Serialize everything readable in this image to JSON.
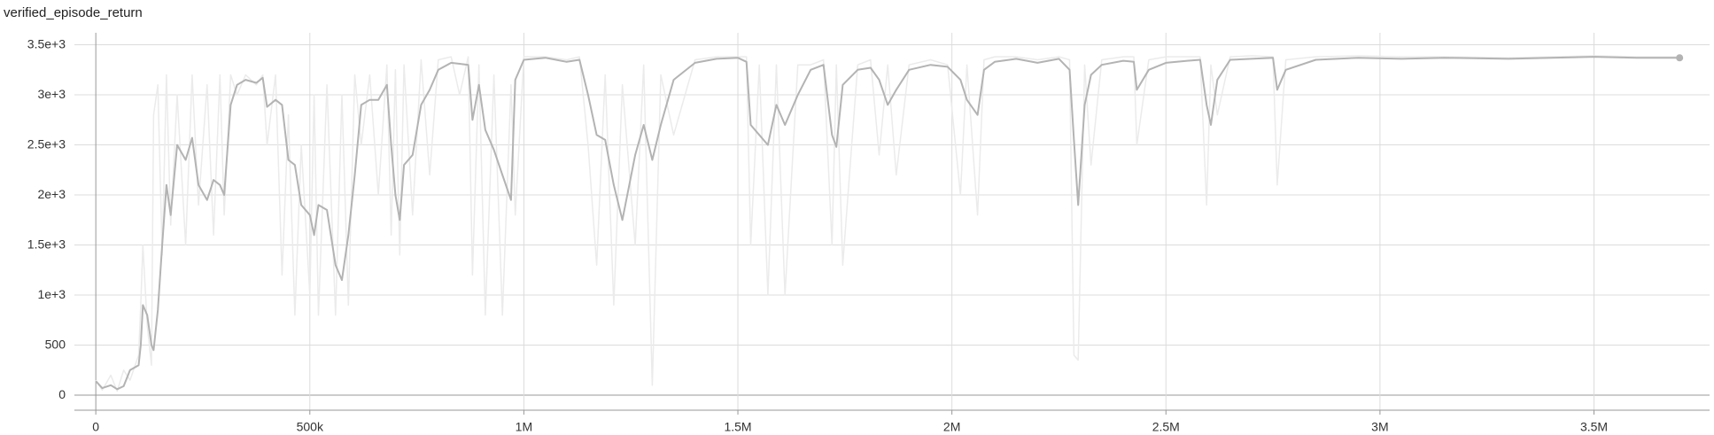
{
  "chart_data": {
    "type": "line",
    "title": "verified_episode_return",
    "x": [
      0,
      15000,
      35000,
      50000,
      65000,
      80000,
      100000,
      105000,
      110000,
      120000,
      130000,
      135000,
      145000,
      155000,
      165000,
      175000,
      190000,
      210000,
      225000,
      240000,
      260000,
      275000,
      290000,
      300000,
      315000,
      330000,
      350000,
      375000,
      390000,
      400000,
      420000,
      435000,
      450000,
      465000,
      480000,
      500000,
      510000,
      520000,
      540000,
      560000,
      575000,
      590000,
      605000,
      620000,
      640000,
      660000,
      680000,
      690000,
      700000,
      710000,
      720000,
      740000,
      760000,
      780000,
      800000,
      830000,
      850000,
      870000,
      880000,
      895000,
      910000,
      930000,
      950000,
      970000,
      980000,
      1000000,
      1050000,
      1100000,
      1130000,
      1150000,
      1170000,
      1190000,
      1210000,
      1230000,
      1260000,
      1280000,
      1300000,
      1320000,
      1350000,
      1400000,
      1450000,
      1500000,
      1520000,
      1530000,
      1550000,
      1570000,
      1590000,
      1610000,
      1640000,
      1670000,
      1700000,
      1720000,
      1730000,
      1745000,
      1780000,
      1810000,
      1830000,
      1850000,
      1870000,
      1900000,
      1950000,
      1990000,
      2020000,
      2035000,
      2060000,
      2075000,
      2100000,
      2150000,
      2200000,
      2250000,
      2275000,
      2285000,
      2295000,
      2310000,
      2325000,
      2350000,
      2400000,
      2425000,
      2432000,
      2460000,
      2500000,
      2550000,
      2580000,
      2595000,
      2605000,
      2620000,
      2650000,
      2700000,
      2750000,
      2760000,
      2780000,
      2850000,
      2950000,
      3050000,
      3150000,
      3300000,
      3400000,
      3500000,
      3600000,
      3700000
    ],
    "series": [
      {
        "color": "#ebebeb",
        "values": [
          150,
          50,
          200,
          40,
          250,
          150,
          400,
          900,
          1500,
          700,
          300,
          2800,
          3100,
          1400,
          3200,
          1700,
          3000,
          1500,
          3200,
          1900,
          3100,
          1600,
          3200,
          1800,
          3200,
          3000,
          3200,
          3100,
          3200,
          2500,
          3200,
          1200,
          2800,
          800,
          2500,
          1000,
          3000,
          800,
          3100,
          800,
          3000,
          900,
          3200,
          2500,
          3200,
          2000,
          3300,
          1600,
          3250,
          1400,
          3300,
          1800,
          3350,
          2200,
          3350,
          3380,
          3000,
          3380,
          1200,
          3300,
          800,
          3200,
          800,
          3100,
          1800,
          3380,
          3380,
          3350,
          3380,
          2500,
          1300,
          3200,
          900,
          3100,
          1500,
          3300,
          100,
          3200,
          2600,
          3350,
          3380,
          3380,
          3380,
          1500,
          3300,
          1000,
          3300,
          1000,
          3300,
          3300,
          3350,
          1500,
          3300,
          1300,
          3300,
          3350,
          2400,
          3300,
          2200,
          3300,
          3350,
          3300,
          2000,
          3300,
          1800,
          3350,
          3380,
          3380,
          3350,
          3380,
          3350,
          400,
          350,
          3300,
          2300,
          3350,
          3380,
          3380,
          2500,
          3350,
          3380,
          3380,
          3380,
          1900,
          3300,
          2800,
          3380,
          3390,
          3380,
          2100,
          3350,
          3380,
          3390,
          3380,
          3380,
          3370,
          3380,
          3390,
          3380,
          3380
        ]
      },
      {
        "color": "#b3b3b3",
        "values": [
          140,
          70,
          100,
          60,
          90,
          250,
          300,
          500,
          900,
          800,
          500,
          450,
          850,
          1500,
          2100,
          1800,
          2500,
          2350,
          2570,
          2100,
          1950,
          2150,
          2100,
          2000,
          2900,
          3100,
          3150,
          3120,
          3170,
          2880,
          2950,
          2900,
          2350,
          2300,
          1900,
          1800,
          1600,
          1900,
          1850,
          1300,
          1150,
          1600,
          2200,
          2900,
          2950,
          2950,
          3100,
          2500,
          2000,
          1750,
          2300,
          2400,
          2900,
          3050,
          3250,
          3320,
          3310,
          3300,
          2750,
          3100,
          2650,
          2450,
          2200,
          1950,
          3150,
          3350,
          3370,
          3330,
          3350,
          3000,
          2600,
          2550,
          2100,
          1750,
          2400,
          2700,
          2350,
          2700,
          3150,
          3320,
          3360,
          3370,
          3330,
          2700,
          2600,
          2500,
          2900,
          2700,
          3000,
          3250,
          3300,
          2600,
          2480,
          3100,
          3250,
          3270,
          3150,
          2900,
          3050,
          3250,
          3300,
          3280,
          3150,
          2950,
          2800,
          3250,
          3330,
          3360,
          3320,
          3360,
          3250,
          2550,
          1900,
          2900,
          3200,
          3300,
          3340,
          3330,
          3050,
          3250,
          3320,
          3340,
          3350,
          2900,
          2700,
          3150,
          3350,
          3360,
          3370,
          3050,
          3250,
          3350,
          3370,
          3360,
          3370,
          3360,
          3370,
          3380,
          3370,
          3370
        ]
      }
    ],
    "xlim": [
      -50000,
      3770000
    ],
    "ylim": [
      -150,
      3620
    ],
    "xticks": [
      0,
      {
        "value": 500000,
        "label": "500k"
      },
      {
        "value": 1000000,
        "label": "1M"
      },
      {
        "value": 1500000,
        "label": "1.5M"
      },
      {
        "value": 2000000,
        "label": "2M"
      },
      {
        "value": 2500000,
        "label": "2.5M"
      },
      {
        "value": 3000000,
        "label": "3M"
      },
      {
        "value": 3500000,
        "label": "3.5M"
      }
    ],
    "yticks": [
      0,
      500,
      {
        "value": 1000,
        "label": "1e+3"
      },
      {
        "value": 1500,
        "label": "1.5e+3"
      },
      {
        "value": 2000,
        "label": "2e+3"
      },
      {
        "value": 2500,
        "label": "2.5e+3"
      },
      {
        "value": 3000,
        "label": "3e+3"
      },
      {
        "value": 3500,
        "label": "3.5e+3"
      }
    ],
    "grid": true
  }
}
